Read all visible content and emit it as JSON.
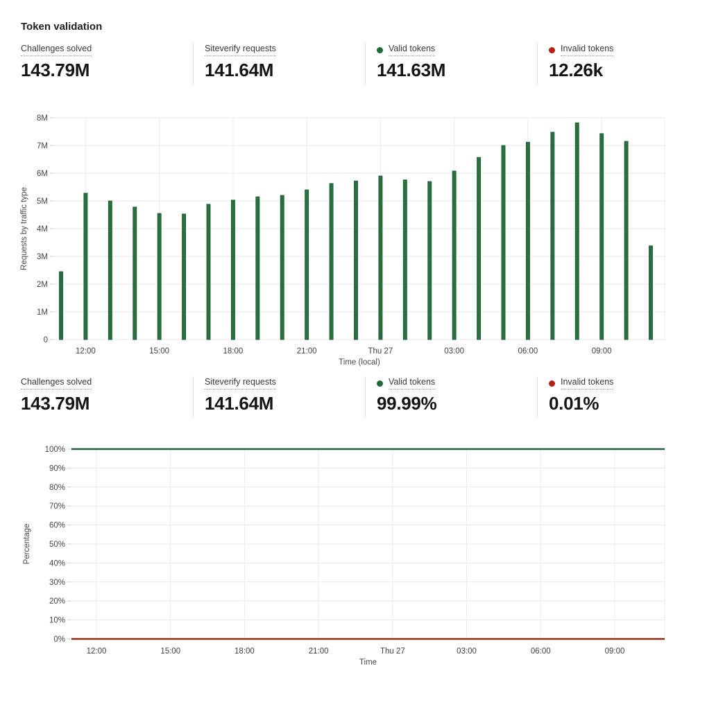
{
  "page": {
    "title": "Token validation"
  },
  "colors": {
    "bar_fill": "#297041",
    "bar_stroke": "#1d5c33",
    "valid_line": "#245e3c",
    "invalid_line": "#8e2b15",
    "dot_green": "#1e6b38",
    "dot_red": "#b72114",
    "grid": "#e8e8e8",
    "tick": "#cfcfcf",
    "tick_text": "#454545",
    "axis_title_text": "#4a4a4a"
  },
  "stats_top": [
    {
      "label": "Challenges solved",
      "value": "143.79M"
    },
    {
      "label": "Siteverify requests",
      "value": "141.64M"
    },
    {
      "label": "Valid tokens",
      "value": "141.63M",
      "dot": "green"
    },
    {
      "label": "Invalid tokens",
      "value": "12.26k",
      "dot": "red"
    }
  ],
  "stats_bottom": [
    {
      "label": "Challenges solved",
      "value": "143.79M"
    },
    {
      "label": "Siteverify requests",
      "value": "141.64M"
    },
    {
      "label": "Valid tokens",
      "value": "99.99%",
      "dot": "green"
    },
    {
      "label": "Invalid tokens",
      "value": "0.01%",
      "dot": "red"
    }
  ],
  "chart_data": [
    {
      "type": "bar",
      "title": "",
      "ylabel": "Requests by traffic type",
      "xlabel": "Time (local)",
      "ylim": [
        0,
        8000000
      ],
      "ytick_labels": [
        "0",
        "1M",
        "2M",
        "3M",
        "4M",
        "5M",
        "6M",
        "7M",
        "8M"
      ],
      "categories": [
        "11:00",
        "12:00",
        "13:00",
        "14:00",
        "15:00",
        "16:00",
        "17:00",
        "18:00",
        "19:00",
        "20:00",
        "21:00",
        "22:00",
        "23:00",
        "Thu 27",
        "01:00",
        "02:00",
        "03:00",
        "04:00",
        "05:00",
        "06:00",
        "07:00",
        "08:00",
        "09:00",
        "10:00",
        "11:00"
      ],
      "values_millions": [
        2.45,
        5.28,
        5.0,
        4.78,
        4.55,
        4.53,
        4.88,
        5.03,
        5.15,
        5.2,
        5.4,
        5.63,
        5.72,
        5.9,
        5.76,
        5.7,
        6.08,
        6.57,
        7.0,
        7.12,
        7.48,
        7.82,
        7.43,
        7.15,
        3.38
      ],
      "xtick_indices": [
        1,
        4,
        7,
        10,
        13,
        16,
        19,
        22
      ],
      "xtick_labels": [
        "12:00",
        "15:00",
        "18:00",
        "21:00",
        "Thu 27",
        "03:00",
        "06:00",
        "09:00"
      ],
      "grid": "on",
      "series_name": "Requests"
    },
    {
      "type": "line",
      "title": "",
      "ylabel": "Percentage",
      "xlabel": "Time",
      "ylim": [
        0,
        100
      ],
      "ytick_labels": [
        "0%",
        "10%",
        "20%",
        "30%",
        "40%",
        "50%",
        "60%",
        "70%",
        "80%",
        "90%",
        "100%"
      ],
      "xtick_labels": [
        "12:00",
        "15:00",
        "18:00",
        "21:00",
        "Thu 27",
        "03:00",
        "06:00",
        "09:00"
      ],
      "grid": "on",
      "series": [
        {
          "name": "Valid tokens",
          "value_percent": 99.99,
          "color_key": "valid_line"
        },
        {
          "name": "Invalid tokens",
          "value_percent": 0.01,
          "color_key": "invalid_line"
        }
      ]
    }
  ]
}
